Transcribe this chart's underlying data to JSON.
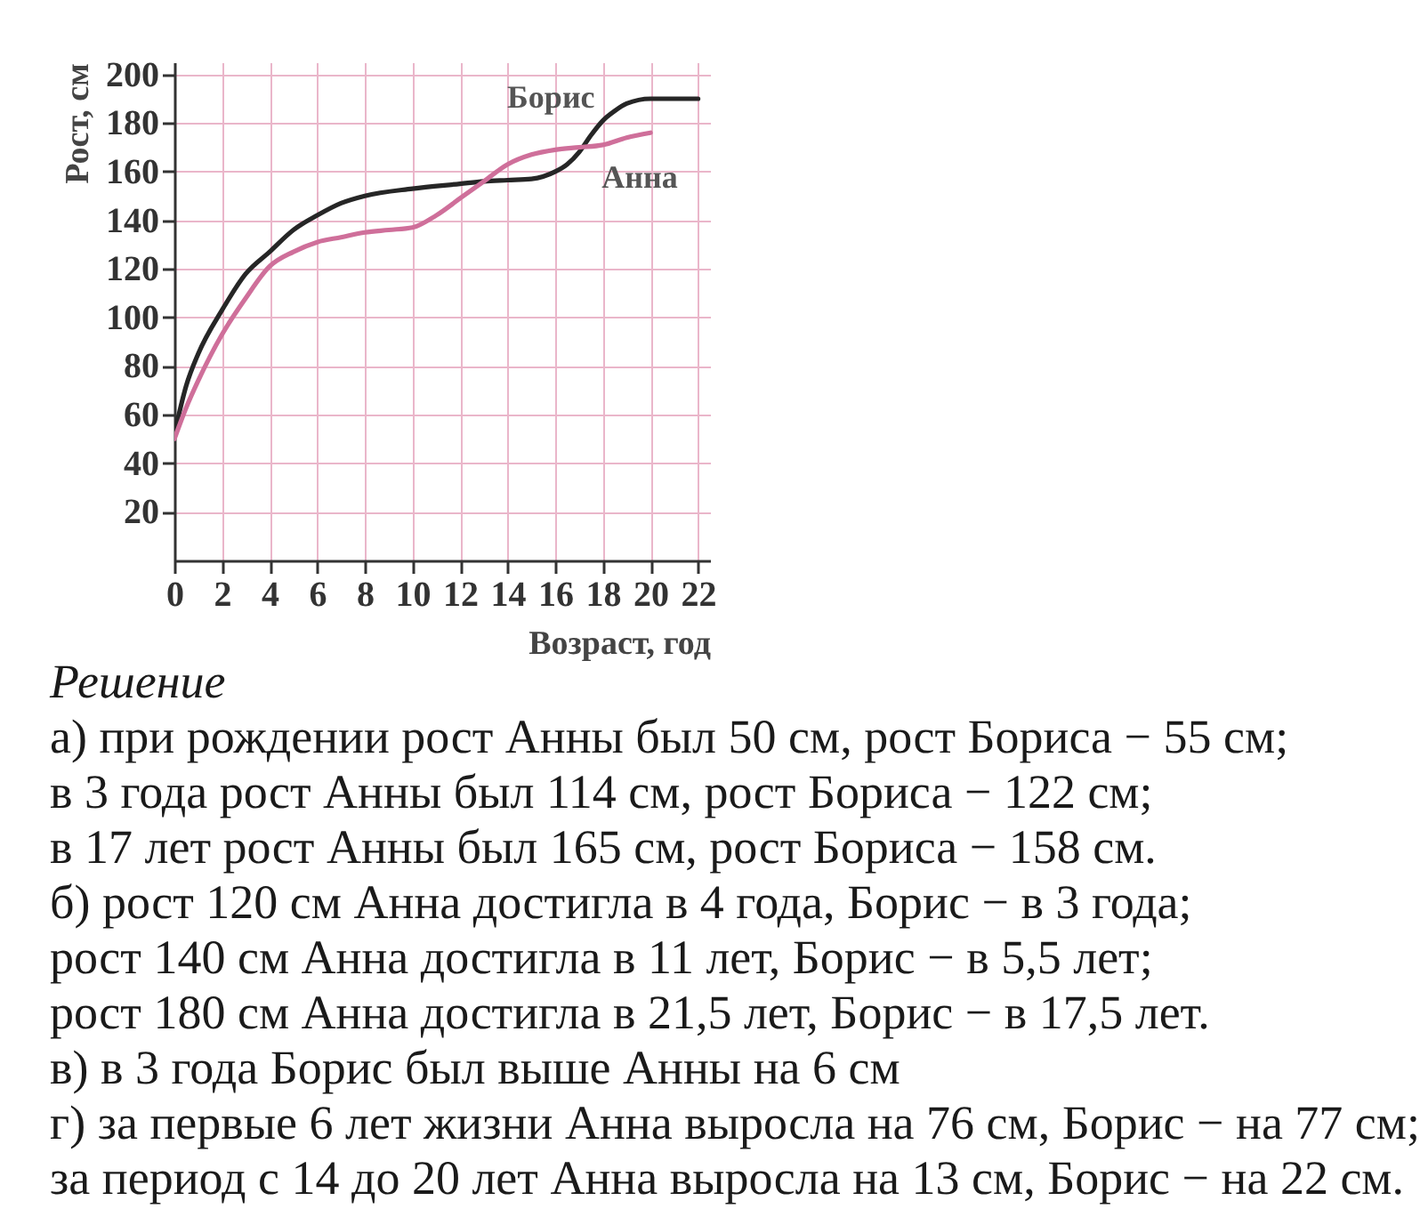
{
  "chart_data": {
    "type": "line",
    "xlabel": "Возраст, год",
    "ylabel": "Рост, см",
    "xlim": [
      0,
      22.5
    ],
    "ylim": [
      0,
      205
    ],
    "xticks": [
      0,
      2,
      4,
      6,
      8,
      10,
      12,
      14,
      16,
      18,
      20,
      22
    ],
    "yticks": [
      20,
      40,
      60,
      80,
      100,
      120,
      140,
      160,
      180,
      200
    ],
    "grid": true,
    "legend": false,
    "line_style": "solid",
    "series": [
      {
        "name": "Борис",
        "color": "#262626",
        "x": [
          0,
          0.5,
          1,
          2,
          3,
          4,
          5,
          6,
          7,
          8,
          10,
          12,
          13,
          14,
          15,
          16,
          16.5,
          17,
          17.5,
          18,
          18.5,
          19,
          20,
          22
        ],
        "values": [
          52,
          72,
          85,
          103,
          118,
          127,
          136,
          142,
          147,
          150,
          153,
          155,
          156,
          156.5,
          157,
          160,
          163,
          168,
          175,
          181,
          185,
          188,
          190,
          190
        ]
      },
      {
        "name": "Анна",
        "color": "#cf6f9a",
        "x": [
          0,
          0.5,
          1,
          2,
          3,
          4,
          5,
          6,
          7,
          8,
          9,
          10,
          11,
          12,
          13,
          14,
          15,
          16,
          17,
          18,
          19,
          20
        ],
        "values": [
          50,
          63,
          74,
          93,
          108,
          121,
          127,
          131,
          133,
          135,
          136,
          137,
          142,
          149,
          156,
          163,
          167,
          169,
          170,
          171,
          174,
          176
        ]
      }
    ],
    "annotations": [
      "Решение",
      "а) при рождении рост Анны был 50 см, рост Бориса − 55 см;",
      "в 3 года рост Анны был 114 см, рост Бориса − 122 см;",
      "в 17 лет рост Анны был 165 см, рост Бориса − 158 см.",
      "б) рост 120 см Анна достигла в 4 года, Борис − в 3 года;",
      "рост 140 см Анна достигла в 11 лет, Борис − в 5,5 лет;",
      "рост 180 см Анна достигла в 21,5 лет, Борис − в 17,5 лет.",
      "в) в 3 года Борис был выше Анны на 6 см",
      "г) за первые 6 лет жизни Анна выросла на 76 см, Борис − на 77 см;",
      "за период с 14 до 20 лет Анна выросла на 13 см, Борис − на 22 см."
    ]
  }
}
